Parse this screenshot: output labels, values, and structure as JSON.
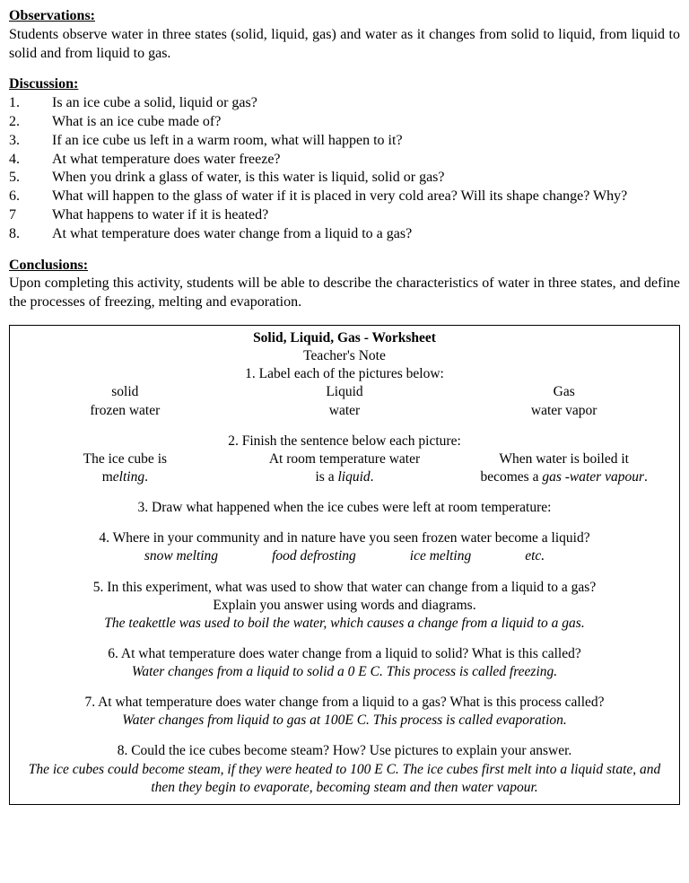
{
  "observations": {
    "heading": "Observations:",
    "text": "Students observe water in three states (solid, liquid, gas) and water as it changes from solid to liquid, from liquid to solid and from liquid to gas."
  },
  "discussion": {
    "heading": "Discussion:",
    "items": [
      {
        "num": "1.",
        "text": "Is an ice cube a solid, liquid or gas?"
      },
      {
        "num": "2.",
        "text": "What is an ice cube made of?"
      },
      {
        "num": "3.",
        "text": "If an ice cube us left in a warm room, what will happen to it?"
      },
      {
        "num": "4.",
        "text": "At what temperature does water freeze?"
      },
      {
        "num": "5.",
        "text": "When you drink a glass of water, is this water is liquid, solid or gas?"
      },
      {
        "num": "6.",
        "text": "What will happen to the glass of water if it is placed in very cold area? Will its shape change? Why?"
      },
      {
        "num": "7",
        "text": "What happens to water if it is heated?"
      },
      {
        "num": "8.",
        "text": "At what temperature does water change from a liquid to a gas?"
      }
    ]
  },
  "conclusions": {
    "heading": "Conclusions:",
    "text": "Upon completing this activity, students will be able to describe the characteristics of water in three states, and define the processes of freezing, melting and evaporation."
  },
  "worksheet": {
    "title": "Solid, Liquid, Gas - Worksheet",
    "subtitle": "Teacher's Note",
    "q1": {
      "prompt": "1. Label each of the pictures below:",
      "row1": {
        "a": "solid",
        "b": "Liquid",
        "c": "Gas"
      },
      "row2": {
        "a": "frozen water",
        "b": "water",
        "c": "water vapor"
      }
    },
    "q2": {
      "prompt": "2. Finish the sentence below each picture:",
      "col1": {
        "line1": "The ice cube is",
        "line2_pre": "m",
        "line2_em": "elting"
      },
      "col2": {
        "line1": "At room temperature water",
        "line2_pre": "is a ",
        "line2_em": "liquid"
      },
      "col3": {
        "line1": "When water is boiled it",
        "line2_pre": "becomes a ",
        "line2_em": "gas -water vapour"
      }
    },
    "q3": "3. Draw what happened when the ice cubes were left at room temperature:",
    "q4": {
      "prompt": "4. Where in your community and in nature have you seen frozen water become a liquid?",
      "answers": {
        "a": "snow melting",
        "b": "food defrosting",
        "c": "ice melting",
        "d": "etc."
      }
    },
    "q5": {
      "prompt": "5. In this experiment, what was used to show that water can change from a liquid to a gas?",
      "sub": "Explain you answer using words and diagrams.",
      "answer": "The teakettle was used to boil the water, which causes a change from a liquid to a gas."
    },
    "q6": {
      "prompt": "6. At what temperature does water change from a liquid to solid? What is this called?",
      "answer": "Water changes from a liquid to solid a 0 E C. This process is called freezing."
    },
    "q7": {
      "prompt": "7. At what temperature does water change from a liquid to a gas? What is this process called?",
      "answer": "Water changes from liquid to gas at 100E C. This process is called evaporation."
    },
    "q8": {
      "prompt": "8. Could the ice cubes become steam? How? Use pictures to explain your answer.",
      "answer": "The ice cubes could become steam, if they were heated to 100 E C. The ice cubes first melt into a liquid state, and then they begin to evaporate, becoming steam and then water vapour."
    }
  }
}
